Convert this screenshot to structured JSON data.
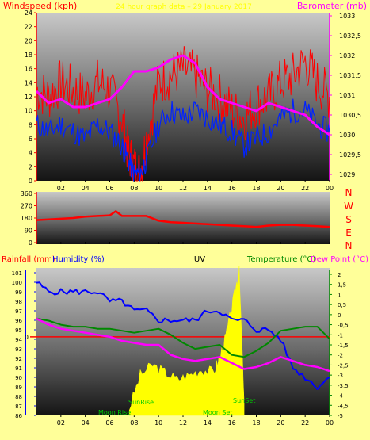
{
  "colors": {
    "bg": "#ffff99",
    "wind": "#ff0000",
    "gust": "#ff0000",
    "baro": "#ff00ff",
    "dir": "#ff0000",
    "humidity": "#0000ff",
    "temp": "#008800",
    "dew": "#ff00ff",
    "uv": "#ffff00",
    "rain": "#ff0000"
  },
  "header": {
    "left": "Windspeed (kph)",
    "right": "Barometer (mb)",
    "center": "24 hour graph data – 29 January 2017"
  },
  "chart_data": [
    {
      "type": "line",
      "name": "wind-baro",
      "ylabel": "Windspeed (kph)",
      "ylim": [
        0,
        24
      ],
      "yticks": [
        0,
        2,
        4,
        6,
        8,
        10,
        12,
        14,
        16,
        18,
        20,
        22,
        24
      ],
      "y2label": "Barometer (mb)",
      "y2lim": [
        1029,
        1033
      ],
      "y2ticks": [
        "1029",
        "1029,5",
        "1030",
        "1030,5",
        "1031",
        "1031,5",
        "1032",
        "1032,5",
        "1033"
      ],
      "xticks": [
        "02",
        "04",
        "06",
        "08",
        "10",
        "12",
        "14",
        "16",
        "18",
        "20",
        "22",
        "00"
      ],
      "series": [
        {
          "key": "gust",
          "x": [
            0,
            1,
            2,
            3,
            4,
            5,
            6,
            7,
            7.5,
            8,
            8.5,
            9,
            10,
            11,
            12,
            13,
            14,
            15,
            16,
            17,
            18,
            19,
            20,
            21,
            22,
            23,
            24
          ],
          "y": [
            13,
            12,
            14,
            13,
            12,
            14,
            13,
            9,
            4,
            2,
            1,
            6,
            14,
            15,
            16,
            15,
            13,
            12,
            10,
            9,
            11,
            12,
            14,
            15,
            17,
            14,
            12
          ]
        },
        {
          "key": "wind",
          "x": [
            0,
            1,
            2,
            3,
            4,
            5,
            6,
            7,
            7.5,
            8,
            8.5,
            9,
            10,
            11,
            12,
            13,
            14,
            15,
            16,
            17,
            18,
            19,
            20,
            21,
            22,
            23,
            24
          ],
          "y": [
            8,
            7,
            8,
            7,
            6,
            8,
            7,
            5,
            3,
            1,
            1,
            3,
            8,
            10,
            9,
            10,
            9,
            8,
            7,
            5,
            6,
            7,
            9,
            10,
            10,
            8,
            7
          ]
        },
        {
          "key": "baro",
          "x": [
            0,
            1,
            2,
            3,
            4,
            5,
            6,
            7,
            8,
            9,
            10,
            11,
            12,
            13,
            14,
            15,
            16,
            17,
            18,
            19,
            20,
            21,
            22,
            23,
            24
          ],
          "y": [
            1031.1,
            1030.8,
            1030.9,
            1030.7,
            1030.7,
            1030.8,
            1030.9,
            1031.2,
            1031.6,
            1031.6,
            1031.7,
            1031.9,
            1032.0,
            1031.8,
            1031.2,
            1030.9,
            1030.8,
            1030.7,
            1030.6,
            1030.8,
            1030.7,
            1030.6,
            1030.5,
            1030.2,
            1030.0
          ]
        }
      ]
    },
    {
      "type": "line",
      "name": "direction",
      "ylim": [
        0,
        360
      ],
      "yticks": [
        "0",
        "90",
        "180",
        "270",
        "360"
      ],
      "compass": [
        "N",
        "W",
        "S",
        "E",
        "N"
      ],
      "series": [
        {
          "key": "dir",
          "x": [
            0,
            1,
            2,
            3,
            4,
            5,
            6,
            6.5,
            7,
            8,
            9,
            10,
            11,
            12,
            13,
            14,
            15,
            16,
            17,
            18,
            19,
            20,
            21,
            22,
            23,
            24
          ],
          "y": [
            165,
            170,
            175,
            180,
            190,
            195,
            200,
            230,
            195,
            195,
            195,
            160,
            150,
            145,
            140,
            135,
            130,
            125,
            120,
            115,
            125,
            130,
            130,
            125,
            120,
            115
          ]
        }
      ]
    },
    {
      "type": "line",
      "name": "rain-hum-temp",
      "labels": {
        "rain": "Rainfall (mm)",
        "humidity": "Humidity (%)",
        "uv": "UV",
        "temp": "Temperature (°C)",
        "dew": "Dew Point (°C)"
      },
      "humidity_lim": [
        86,
        101
      ],
      "humidity_ticks": [
        "86",
        "87",
        "88",
        "89",
        "90",
        "91",
        "92",
        "93",
        "94",
        "95",
        "96",
        "97",
        "98",
        "99",
        "100",
        "101"
      ],
      "temp_lim": [
        -5,
        2
      ],
      "temp_ticks": [
        "-5",
        "-4,5",
        "-4",
        "-3,5",
        "-3",
        "-2,5",
        "-2",
        "-1,5",
        "-1",
        "-0,5",
        "0",
        "0,5",
        "1",
        "1,5",
        "2"
      ],
      "rain_tick": "0",
      "annotations": [
        "SunRise",
        "SunSet",
        "Moon Rise",
        "Moon Set"
      ],
      "series": [
        {
          "key": "humidity",
          "x": [
            0,
            1,
            2,
            3,
            4,
            5,
            6,
            7,
            8,
            9,
            10,
            11,
            12,
            13,
            14,
            15,
            16,
            17,
            18,
            19,
            20,
            21,
            22,
            23,
            24
          ],
          "y": [
            100,
            99,
            99,
            99,
            99,
            99,
            98,
            98,
            97,
            97,
            96,
            96,
            96,
            96,
            97,
            97,
            96,
            96,
            95,
            95,
            94,
            91,
            90,
            89,
            90
          ]
        },
        {
          "key": "temp",
          "x": [
            0,
            1,
            2,
            3,
            4,
            5,
            6,
            7,
            8,
            9,
            10,
            11,
            12,
            13,
            14,
            15,
            16,
            17,
            18,
            19,
            20,
            21,
            22,
            23,
            24
          ],
          "y": [
            -0.2,
            -0.3,
            -0.5,
            -0.6,
            -0.6,
            -0.7,
            -0.7,
            -0.8,
            -0.9,
            -0.8,
            -0.7,
            -1.0,
            -1.4,
            -1.7,
            -1.6,
            -1.5,
            -2.0,
            -2.1,
            -1.8,
            -1.4,
            -0.8,
            -0.7,
            -0.6,
            -0.6,
            -1.2
          ]
        },
        {
          "key": "dew",
          "x": [
            0,
            1,
            2,
            3,
            4,
            5,
            6,
            7,
            8,
            9,
            10,
            11,
            12,
            13,
            14,
            15,
            16,
            17,
            18,
            19,
            20,
            21,
            22,
            23,
            24
          ],
          "y": [
            -0.2,
            -0.5,
            -0.7,
            -0.8,
            -0.9,
            -1.0,
            -1.1,
            -1.3,
            -1.4,
            -1.5,
            -1.5,
            -2.0,
            -2.2,
            -2.3,
            -2.2,
            -2.1,
            -2.4,
            -2.7,
            -2.6,
            -2.4,
            -2.1,
            -2.3,
            -2.5,
            -2.6,
            -2.8
          ]
        },
        {
          "key": "uv",
          "x": [
            7.6,
            8.5,
            9.5,
            10.5,
            11.5,
            12.5,
            13.5,
            14.5,
            15,
            15.5,
            16,
            16.4,
            16.6,
            17
          ],
          "y": [
            0.05,
            0.28,
            0.35,
            0.3,
            0.25,
            0.28,
            0.32,
            0.3,
            0.4,
            0.55,
            0.75,
            0.92,
            1.0,
            0.1
          ]
        }
      ]
    }
  ]
}
